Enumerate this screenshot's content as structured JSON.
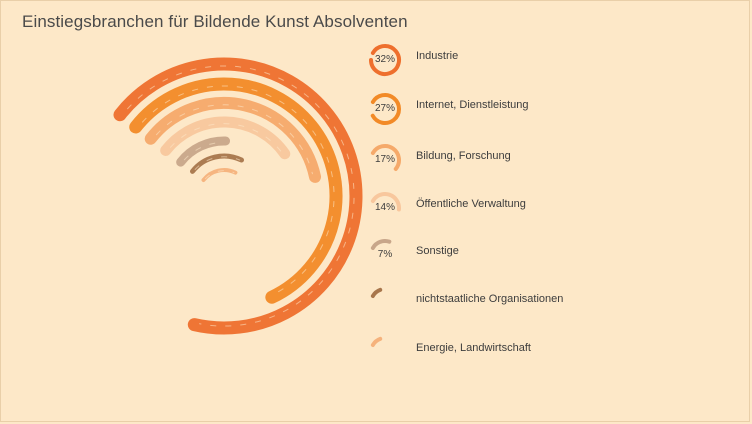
{
  "chart_data": {
    "type": "radial-bar",
    "title": "Einstiegsbranchen für Bildende Kunst Absolventen",
    "categories": [
      "Industrie",
      "Internet, Dienstleistung",
      "Bildung, Forschung",
      "Öffentliche Verwaltung",
      "Sonstige",
      "nichtstaatliche Organisationen",
      "Energie, Landwirtschaft"
    ],
    "values": [
      32,
      27,
      17,
      14,
      7,
      2,
      1
    ],
    "value_labels": [
      "32%",
      "27%",
      "17%",
      "14%",
      "7%",
      "",
      ""
    ],
    "unit": "%",
    "colors": [
      "#ee6f2d",
      "#f28a27",
      "#f5a96a",
      "#f8c79d",
      "#c8a68a",
      "#a8764c",
      "#f5b27c"
    ],
    "legend_position": "right"
  }
}
